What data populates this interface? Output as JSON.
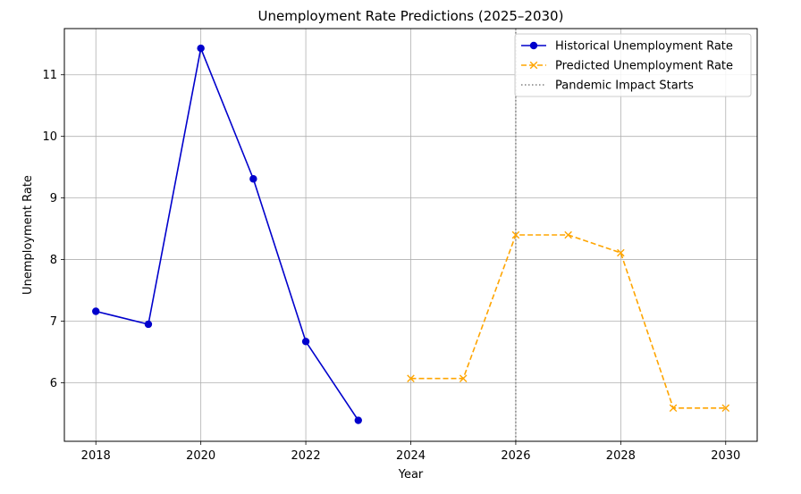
{
  "chart_data": {
    "type": "line",
    "title": "Unemployment Rate Predictions (2025–2030)",
    "xlabel": "Year",
    "ylabel": "Unemployment Rate",
    "xlim": [
      2017.4,
      2030.6
    ],
    "ylim": [
      5.05,
      11.75
    ],
    "xticks": [
      2018,
      2020,
      2022,
      2024,
      2026,
      2028,
      2030
    ],
    "yticks": [
      6,
      7,
      8,
      9,
      10,
      11
    ],
    "grid": true,
    "legend_position": "top-right",
    "series": [
      {
        "name": "Historical Unemployment Rate",
        "color": "#0000cc",
        "style": "solid",
        "marker": "circle",
        "x": [
          2018,
          2019,
          2020,
          2021,
          2022,
          2023
        ],
        "y": [
          7.16,
          6.95,
          11.43,
          9.31,
          6.67,
          5.39
        ]
      },
      {
        "name": "Predicted Unemployment Rate",
        "color": "#ffa500",
        "style": "dashed",
        "marker": "x",
        "x": [
          2024,
          2025,
          2026,
          2027,
          2028,
          2029,
          2030
        ],
        "y": [
          6.07,
          6.07,
          8.4,
          8.4,
          8.11,
          5.59,
          5.59
        ]
      }
    ],
    "vlines": [
      {
        "name": "Pandemic Impact Starts",
        "x": 2026,
        "color": "#808080",
        "style": "dotted"
      }
    ]
  }
}
